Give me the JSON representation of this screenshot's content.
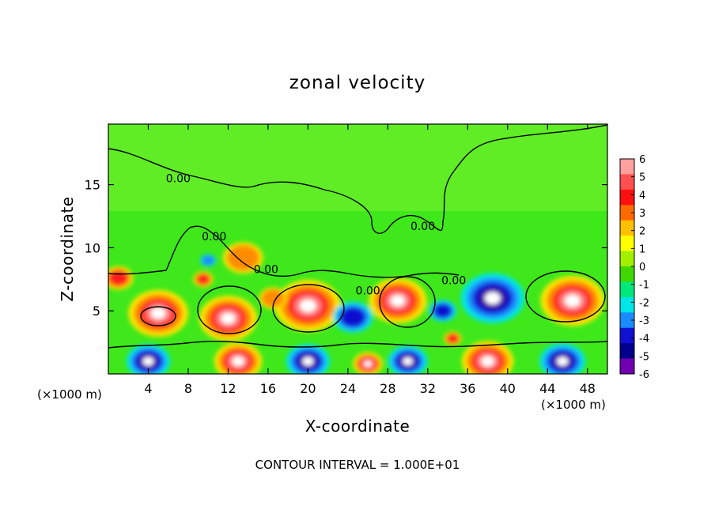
{
  "chart_data": {
    "type": "heatmap",
    "title": "zonal velocity",
    "xlabel": "X-coordinate",
    "ylabel": "Z-coordinate",
    "x_unit_left": "(×1000 m)",
    "x_unit_right": "(×1000 m)",
    "footer": "CONTOUR INTERVAL = 1.000E+01",
    "xlim": [
      0,
      50
    ],
    "ylim": [
      0,
      19.8
    ],
    "xticks": [
      4,
      8,
      12,
      16,
      20,
      24,
      28,
      32,
      36,
      40,
      44,
      48
    ],
    "yticks": [
      5,
      10,
      15
    ],
    "contour_labels": [
      {
        "text": "0.00",
        "x": 7,
        "y": 15.2
      },
      {
        "text": "0.00",
        "x": 10.6,
        "y": 10.6
      },
      {
        "text": "0.00",
        "x": 15.8,
        "y": 8.0
      },
      {
        "text": "0.00",
        "x": 26.0,
        "y": 6.3
      },
      {
        "text": "0.00",
        "x": 31.5,
        "y": 11.4
      },
      {
        "text": "0.00",
        "x": 34.6,
        "y": 7.1
      }
    ],
    "colorbar": {
      "min": -6,
      "max": 6,
      "ticks": [
        "6",
        "5",
        "4",
        "3",
        "2",
        "1",
        "0",
        "-1",
        "-2",
        "-3",
        "-4",
        "-5",
        "-6"
      ],
      "colors": [
        "#ffa0a0",
        "#ff5050",
        "#ff1010",
        "#ff6a00",
        "#ffc000",
        "#ffff00",
        "#a0f000",
        "#40d800",
        "#00e87a",
        "#00e6e6",
        "#1a8cff",
        "#1010d0",
        "#00008c",
        "#7000b0"
      ]
    },
    "cells": [
      {
        "x": 5,
        "z": 4.8,
        "r": 3.0,
        "v": 6
      },
      {
        "x": 12,
        "z": 4.4,
        "r": 2.9,
        "v": 6
      },
      {
        "x": 20,
        "z": 5.4,
        "r": 3.3,
        "v": 6
      },
      {
        "x": 29,
        "z": 5.8,
        "r": 2.9,
        "v": 6
      },
      {
        "x": 38.5,
        "z": 6.0,
        "r": 3.2,
        "v": -6
      },
      {
        "x": 46.5,
        "z": 5.8,
        "r": 3.2,
        "v": 5.5
      },
      {
        "x": 4,
        "z": 1.0,
        "r": 2.2,
        "v": -6
      },
      {
        "x": 13,
        "z": 1.0,
        "r": 2.4,
        "v": 6
      },
      {
        "x": 20,
        "z": 1.0,
        "r": 2.2,
        "v": -6
      },
      {
        "x": 26,
        "z": 0.8,
        "r": 1.5,
        "v": 6
      },
      {
        "x": 30,
        "z": 1.0,
        "r": 2.0,
        "v": -6
      },
      {
        "x": 38,
        "z": 1.0,
        "r": 2.6,
        "v": 6
      },
      {
        "x": 45.5,
        "z": 1.0,
        "r": 2.3,
        "v": -6
      },
      {
        "x": 9.5,
        "z": 7.5,
        "r": 1.0,
        "v": 4
      },
      {
        "x": 34.5,
        "z": 2.8,
        "r": 0.9,
        "v": 4
      },
      {
        "x": 24.5,
        "z": 4.5,
        "r": 2.0,
        "v": -3
      },
      {
        "x": 33.5,
        "z": 5.0,
        "r": 1.4,
        "v": -3
      },
      {
        "x": 16.5,
        "z": 6.0,
        "r": 1.4,
        "v": 2
      },
      {
        "x": 1,
        "z": 7.6,
        "r": 1.5,
        "v": 3
      },
      {
        "x": 13.5,
        "z": 9.2,
        "r": 2.0,
        "v": 2
      },
      {
        "x": 10,
        "z": 9.0,
        "r": 0.8,
        "v": -2
      }
    ]
  }
}
